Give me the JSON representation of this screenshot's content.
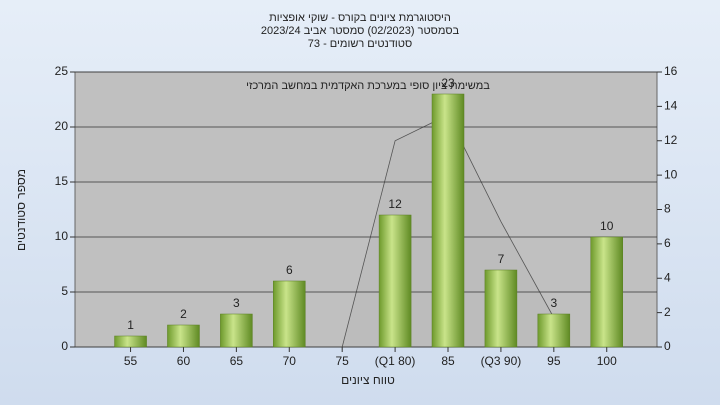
{
  "chart_data": {
    "type": "bar",
    "title": [
      "היסטוגרמת ציונים בקורס - שוקי אופציות",
      "בסמסטר  (02/2023)  סמסטר אביב 2023/24",
      "סטודנטים רשומים - 73"
    ],
    "annotation": "במשימת ציון סופי במערכת האקדמית במחשב המרכזי",
    "x_label": "טווח ציונים",
    "y_label": "מספר סטודנטים",
    "categories": [
      "55",
      "60",
      "65",
      "70",
      "75",
      "(Q1 80)",
      "85",
      "(Q3 90)",
      "95",
      "100"
    ],
    "values": [
      1,
      2,
      3,
      6,
      0,
      12,
      23,
      7,
      3,
      10
    ],
    "value_labels": [
      "1",
      "2",
      "3",
      "6",
      null,
      "12",
      "23",
      "7",
      "3",
      "10"
    ],
    "color": "#9bc24a",
    "curve": {
      "axis": "y2",
      "color": "#bcbcbc",
      "values": [
        null,
        null,
        null,
        null,
        0,
        12,
        13.5,
        7.3,
        1.7,
        null
      ]
    },
    "ylim": [
      0,
      25
    ],
    "yticks": [
      0,
      5,
      10,
      15,
      20,
      25
    ],
    "y2lim": [
      0,
      16
    ],
    "y2ticks": [
      0,
      2,
      4,
      6,
      8,
      10,
      12,
      14,
      16
    ],
    "grid": true
  }
}
